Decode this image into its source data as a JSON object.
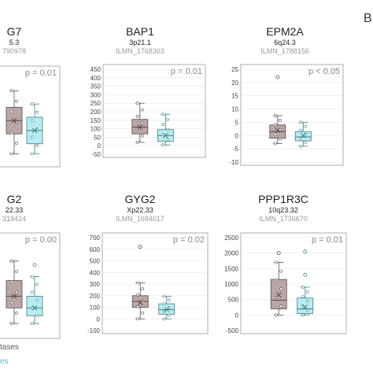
{
  "panel_letter": "B",
  "legend": {
    "metastases_label": "tases",
    "primaries_label": "es"
  },
  "colors": {
    "group_a_fill": "#b9a6a7",
    "group_a_stroke": "#5b4a4c",
    "group_b_fill": "#b9ecf0",
    "group_b_stroke": "#3f7f86",
    "axis": "#9a9a9a",
    "grid": "#e6e6e6"
  },
  "chart_data": [
    {
      "type": "box",
      "gene": "G7",
      "location": "5.3",
      "probe": "790978",
      "p_value": "p = 0.01",
      "yticks": [],
      "groups": [
        {
          "min": 40,
          "q1": 100,
          "median": 140,
          "q3": 180,
          "max": 230,
          "mean": 140,
          "outliers": []
        },
        {
          "min": 40,
          "q1": 70,
          "median": 110,
          "q3": 150,
          "max": 190,
          "mean": 110,
          "outliers": []
        }
      ]
    },
    {
      "type": "box",
      "gene": "BAP1",
      "location": "3p21.1",
      "probe": "ILMN_1768363",
      "p_value": "p = 0.01",
      "ylim": [
        -50,
        450
      ],
      "yticks": [
        "450",
        "400",
        "350",
        "300",
        "250",
        "200",
        "150",
        "100",
        "50",
        "0",
        "-50"
      ],
      "groups": [
        {
          "min": 20,
          "q1": 70,
          "median": 110,
          "q3": 155,
          "max": 250,
          "mean": 110,
          "outliers": []
        },
        {
          "min": 5,
          "q1": 25,
          "median": 60,
          "q3": 95,
          "max": 185,
          "mean": 60,
          "outliers": []
        }
      ]
    },
    {
      "type": "box",
      "gene": "EPM2A",
      "location": "6q24.3",
      "probe": "ILMN_1788156",
      "p_value": "p < 0.05",
      "ylim": [
        -10,
        25
      ],
      "yticks": [
        "25",
        "20",
        "15",
        "10",
        "5",
        "0",
        "-5",
        "-10"
      ],
      "groups": [
        {
          "min": -3,
          "q1": -1,
          "median": 1.5,
          "q3": 4,
          "max": 7.5,
          "mean": 2,
          "outliers": [
            22
          ]
        },
        {
          "min": -4,
          "q1": -2,
          "median": -0.5,
          "q3": 1.5,
          "max": 5,
          "mean": 0,
          "outliers": []
        }
      ]
    },
    {
      "type": "box",
      "gene": "G2",
      "location": "22.33",
      "probe": "319424",
      "p_value": "p = 0.00",
      "yticks": [],
      "groups": [
        {
          "min": -60,
          "q1": -20,
          "median": 10,
          "q3": 50,
          "max": 100,
          "mean": 10,
          "outliers": []
        },
        {
          "min": -60,
          "q1": -40,
          "median": -20,
          "q3": 10,
          "max": 60,
          "mean": -20,
          "outliers": [
            90
          ]
        }
      ]
    },
    {
      "type": "box",
      "gene": "GYG2",
      "location": "Xp22.33",
      "probe": "ILMN_1684017",
      "p_value": "p = 0.02",
      "ylim": [
        -100,
        700
      ],
      "yticks": [
        "700",
        "600",
        "500",
        "400",
        "300",
        "200",
        "100",
        "0",
        "-100"
      ],
      "groups": [
        {
          "min": 0,
          "q1": 100,
          "median": 150,
          "q3": 200,
          "max": 310,
          "mean": 140,
          "outliers": [
            620
          ]
        },
        {
          "min": 0,
          "q1": 40,
          "median": 80,
          "q3": 130,
          "max": 195,
          "mean": 80,
          "outliers": []
        }
      ]
    },
    {
      "type": "box",
      "gene": "PPP1R3C",
      "location": "10q23.32",
      "probe": "ILMN_1736670",
      "p_value": "p = 0.01",
      "ylim": [
        -500,
        2500
      ],
      "yticks": [
        "2500",
        "2000",
        "1500",
        "1000",
        "500",
        "0",
        "-500"
      ],
      "groups": [
        {
          "min": 0,
          "q1": 200,
          "median": 480,
          "q3": 1150,
          "max": 1700,
          "mean": 650,
          "outliers": [
            2000
          ]
        },
        {
          "min": 0,
          "q1": 50,
          "median": 200,
          "q3": 550,
          "max": 900,
          "mean": 250,
          "outliers": [
            1300,
            2050
          ]
        }
      ]
    }
  ]
}
